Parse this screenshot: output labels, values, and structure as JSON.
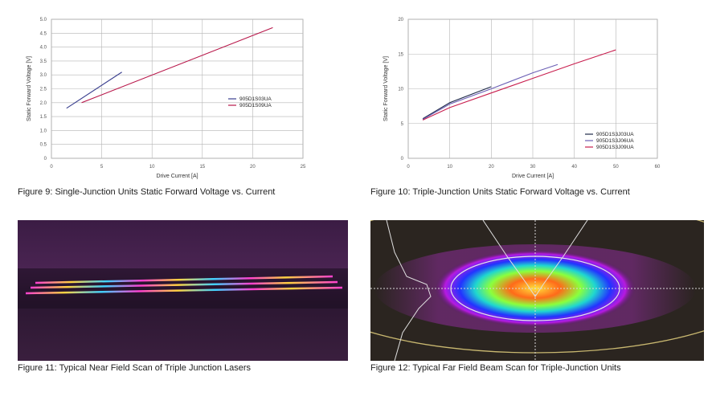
{
  "chart_data": [
    {
      "type": "line",
      "xlabel": "Drive Current [A]",
      "ylabel": "Static Forward Voltage [V]",
      "xlim": [
        0,
        25
      ],
      "ylim": [
        0,
        5.0
      ],
      "xticks": [
        "0",
        "5",
        "10",
        "15",
        "20",
        "25"
      ],
      "yticks": [
        "0",
        "0.5",
        "1.0",
        "1.5",
        "2.0",
        "2.5",
        "3.0",
        "3.5",
        "4.0",
        "4.5",
        "5.0"
      ],
      "grid": true,
      "legend": "right",
      "series": [
        {
          "name": "905D1S03UA",
          "color": "#3a3f8f",
          "x": [
            1.5,
            7.0
          ],
          "y": [
            1.8,
            3.1
          ]
        },
        {
          "name": "905D1S09UA",
          "color": "#b8174a",
          "x": [
            3.0,
            22.0
          ],
          "y": [
            2.0,
            4.7
          ]
        }
      ]
    },
    {
      "type": "line",
      "xlabel": "Drive Current [A]",
      "ylabel": "Static Forward Voltage [V]",
      "xlim": [
        0,
        60
      ],
      "ylim": [
        0,
        20
      ],
      "xticks": [
        "0",
        "10",
        "20",
        "30",
        "40",
        "50",
        "60"
      ],
      "yticks": [
        "0",
        "5",
        "10",
        "15",
        "20"
      ],
      "grid": true,
      "legend": "bottom-right",
      "series": [
        {
          "name": "905D1S3J03UA",
          "color": "#1e2a4a",
          "x": [
            3.5,
            10,
            20
          ],
          "y": [
            5.7,
            8.0,
            10.3
          ]
        },
        {
          "name": "905D1S3J06UA",
          "color": "#6b5fb5",
          "x": [
            3.5,
            10,
            20,
            30,
            36
          ],
          "y": [
            5.6,
            7.8,
            10.0,
            12.3,
            13.5
          ]
        },
        {
          "name": "905D1S3J09UA",
          "color": "#c81e4e",
          "x": [
            3.5,
            10,
            20,
            30,
            40,
            50
          ],
          "y": [
            5.5,
            7.3,
            9.4,
            11.5,
            13.6,
            15.6
          ]
        }
      ]
    }
  ],
  "captions": {
    "fig9": "Figure 9: Single-Junction Units Static Forward Voltage vs. Current",
    "fig10": "Figure 10: Triple-Junction Units Static Forward Voltage vs. Current",
    "fig11": "Figure 11: Typical Near Field Scan of Triple Junction Lasers",
    "fig12": "Figure 12: Typical Far Field Beam Scan for Triple-Junction Units"
  }
}
